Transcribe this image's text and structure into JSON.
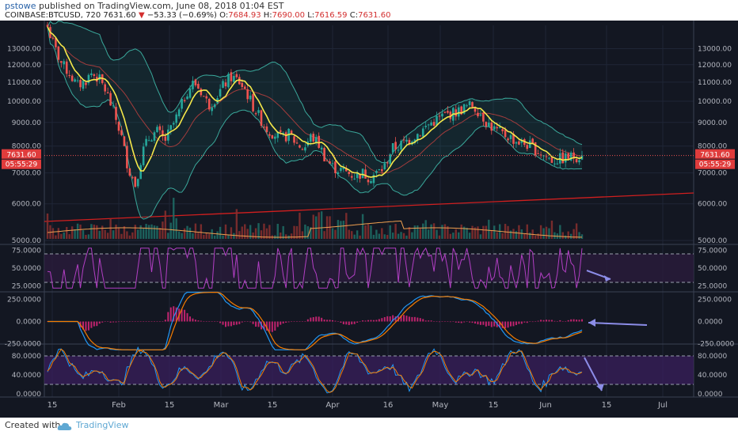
{
  "header": {
    "author": "pstowe",
    "published_text": "published on TradingView.com, June 08, 2018 01:04 EST",
    "symbol": "COINBASE:BTCUSD, 720",
    "last": "7631.60",
    "change": "−53.33 (−0.69%)",
    "o_label": "O:",
    "o_val": "7684.93",
    "h_label": "H:",
    "h_val": "7690.00",
    "l_label": "L:",
    "l_val": "7616.59",
    "c_label": "C:",
    "c_val": "7631.60"
  },
  "footer": {
    "created_with": "Created with",
    "brand": "TradingView"
  },
  "colors": {
    "background": "#131722",
    "up": "#26a69a",
    "down": "#ef5350",
    "sma": "#f5e84a",
    "bollinger": "#3aa89b",
    "trendline": "#d01f1f",
    "rsi": "#b23fc4",
    "macd": "#2196f3",
    "signal": "#f57c00",
    "stoch_k": "#2196f3",
    "stoch_d": "#f57c00",
    "arrow": "#8c8de8"
  },
  "chart_data": [
    {
      "type": "candlestick",
      "pane": "price",
      "scale": "log",
      "ylim": [
        5000,
        14600
      ],
      "x_ticks": [
        "15",
        "Feb",
        "15",
        "Mar",
        "15",
        "Apr",
        "16",
        "May",
        "15",
        "Jun",
        "15",
        "Jul"
      ],
      "y_ticks": [
        "5000.00",
        "6000.00",
        "7000.00",
        "8000.00",
        "9000.00",
        "10000.00",
        "11000.00",
        "12000.00",
        "13000.00"
      ],
      "last_price_label": "7631.60",
      "countdown_label": "05:55:29",
      "close_path": [
        14500,
        13000,
        12000,
        11500,
        10800,
        11000,
        11500,
        11200,
        10500,
        9500,
        8500,
        7200,
        6600,
        7800,
        8400,
        8600,
        8200,
        8800,
        9500,
        10500,
        11000,
        10500,
        9800,
        10200,
        10800,
        11300,
        11100,
        10600,
        9800,
        9200,
        8700,
        8500,
        8300,
        8500,
        8100,
        7900,
        8400,
        8100,
        7500,
        7200,
        7100,
        7000,
        6900,
        7000,
        6850,
        7000,
        7200,
        7900,
        8000,
        8200,
        8400,
        8600,
        8900,
        9100,
        9300,
        9400,
        9500,
        9700,
        9800,
        9500,
        9000,
        8700,
        8500,
        8400,
        8200,
        8100,
        8000,
        7800,
        7600,
        7450,
        7500,
        7550,
        7600,
        7631.6
      ]
    },
    {
      "type": "line",
      "pane": "rsi",
      "series": [
        {
          "values": []
        }
      ],
      "y_ticks": [
        "75.0000",
        "50.0000",
        "25.0000"
      ],
      "levels": [
        70,
        30
      ]
    },
    {
      "type": "line+bar",
      "pane": "macd",
      "series": [
        {
          "values": []
        },
        {
          "values": []
        }
      ],
      "y_ticks": [
        "250.0000",
        "0.0000",
        "-250.0000"
      ]
    },
    {
      "type": "line",
      "pane": "stochastic",
      "series": [
        {
          "values": []
        },
        {
          "values": []
        }
      ],
      "y_ticks": [
        "80.0000",
        "40.0000",
        "0.0000"
      ],
      "levels": [
        80,
        20
      ]
    }
  ]
}
